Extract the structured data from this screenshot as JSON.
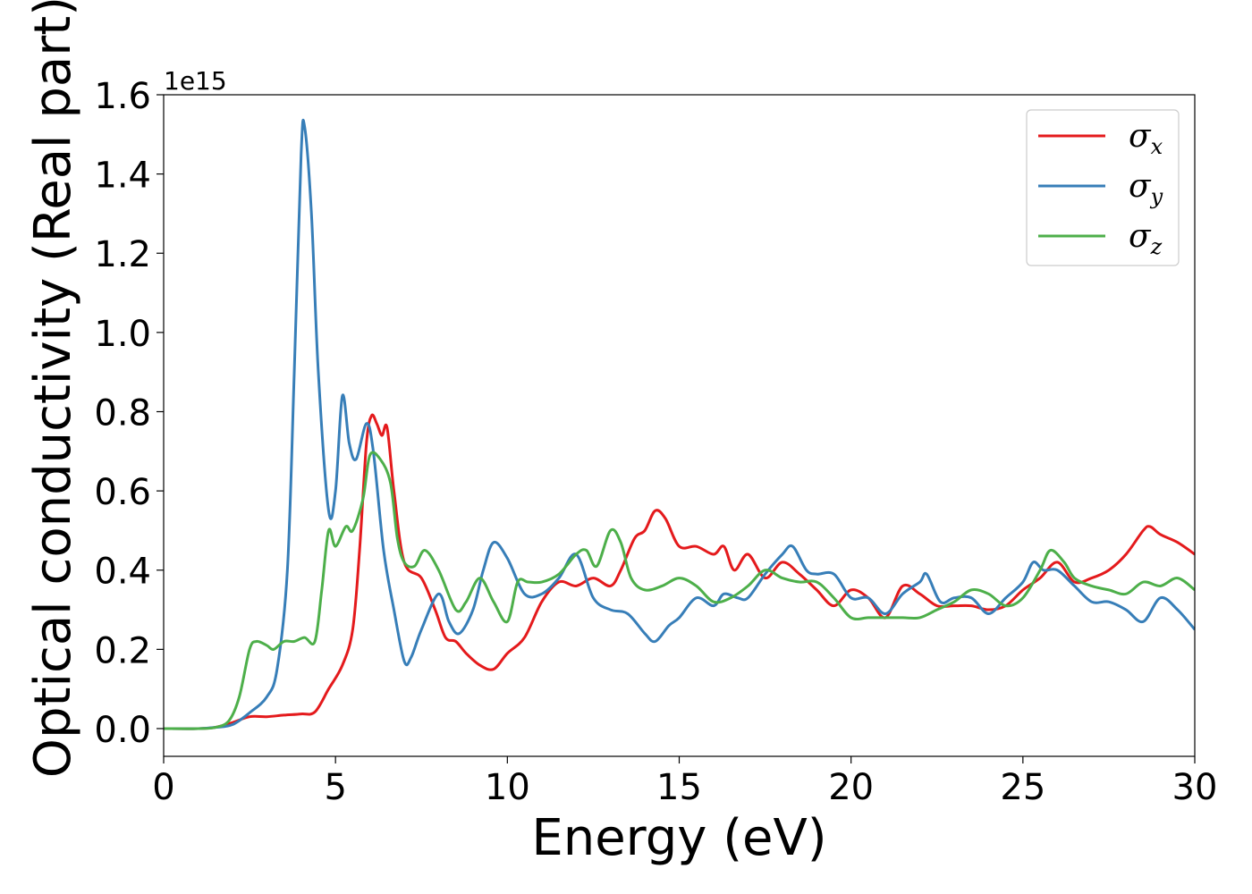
{
  "chart_data": {
    "type": "line",
    "xlabel": "Energy (eV)",
    "ylabel": "Optical conductivity (Real part)",
    "y_offset_label": "1e15",
    "xlim": [
      0,
      30
    ],
    "ylim": [
      -0.07,
      1.6
    ],
    "x_ticks": [
      "0",
      "5",
      "10",
      "15",
      "20",
      "25",
      "30"
    ],
    "x_tick_values": [
      0,
      5,
      10,
      15,
      20,
      25,
      30
    ],
    "y_ticks": [
      "0.0",
      "0.2",
      "0.4",
      "0.6",
      "0.8",
      "1.0",
      "1.2",
      "1.4",
      "1.6"
    ],
    "y_tick_values": [
      0,
      0.2,
      0.4,
      0.6,
      0.8,
      1.0,
      1.2,
      1.4,
      1.6
    ],
    "grid": false,
    "legend_position": "top-right",
    "series": [
      {
        "name": "σx",
        "symbol": "σ",
        "subscript": "x",
        "color": "#e41a1c",
        "points": [
          [
            0,
            0
          ],
          [
            1,
            0
          ],
          [
            1.5,
            0.003
          ],
          [
            2,
            0.015
          ],
          [
            2.5,
            0.03
          ],
          [
            3,
            0.03
          ],
          [
            3.5,
            0.034
          ],
          [
            4,
            0.037
          ],
          [
            4.4,
            0.042
          ],
          [
            4.8,
            0.1
          ],
          [
            5.2,
            0.16
          ],
          [
            5.5,
            0.25
          ],
          [
            5.7,
            0.45
          ],
          [
            5.9,
            0.72
          ],
          [
            6.05,
            0.79
          ],
          [
            6.2,
            0.77
          ],
          [
            6.35,
            0.74
          ],
          [
            6.5,
            0.76
          ],
          [
            6.7,
            0.6
          ],
          [
            7,
            0.42
          ],
          [
            7.5,
            0.38
          ],
          [
            7.9,
            0.3
          ],
          [
            8.2,
            0.23
          ],
          [
            8.5,
            0.22
          ],
          [
            8.8,
            0.19
          ],
          [
            9.2,
            0.16
          ],
          [
            9.6,
            0.15
          ],
          [
            10,
            0.19
          ],
          [
            10.5,
            0.23
          ],
          [
            11,
            0.32
          ],
          [
            11.5,
            0.37
          ],
          [
            12,
            0.36
          ],
          [
            12.5,
            0.38
          ],
          [
            13,
            0.36
          ],
          [
            13.3,
            0.4
          ],
          [
            13.7,
            0.48
          ],
          [
            14,
            0.5
          ],
          [
            14.3,
            0.55
          ],
          [
            14.6,
            0.53
          ],
          [
            15,
            0.46
          ],
          [
            15.5,
            0.46
          ],
          [
            16,
            0.44
          ],
          [
            16.3,
            0.46
          ],
          [
            16.6,
            0.4
          ],
          [
            17,
            0.44
          ],
          [
            17.5,
            0.38
          ],
          [
            18,
            0.42
          ],
          [
            18.5,
            0.39
          ],
          [
            19,
            0.35
          ],
          [
            19.5,
            0.31
          ],
          [
            20,
            0.35
          ],
          [
            20.5,
            0.33
          ],
          [
            21,
            0.28
          ],
          [
            21.5,
            0.36
          ],
          [
            22,
            0.34
          ],
          [
            22.5,
            0.31
          ],
          [
            23,
            0.31
          ],
          [
            23.5,
            0.31
          ],
          [
            24,
            0.3
          ],
          [
            24.5,
            0.31
          ],
          [
            25,
            0.35
          ],
          [
            25.5,
            0.38
          ],
          [
            26,
            0.42
          ],
          [
            26.5,
            0.37
          ],
          [
            27,
            0.38
          ],
          [
            27.5,
            0.4
          ],
          [
            28,
            0.44
          ],
          [
            28.5,
            0.5
          ],
          [
            28.7,
            0.51
          ],
          [
            29,
            0.49
          ],
          [
            29.5,
            0.47
          ],
          [
            30,
            0.44
          ]
        ]
      },
      {
        "name": "σy",
        "symbol": "σ",
        "subscript": "y",
        "color": "#377eb8",
        "points": [
          [
            0,
            0
          ],
          [
            1,
            0
          ],
          [
            1.5,
            0.003
          ],
          [
            2,
            0.01
          ],
          [
            2.5,
            0.04
          ],
          [
            3,
            0.08
          ],
          [
            3.3,
            0.15
          ],
          [
            3.6,
            0.4
          ],
          [
            3.8,
            0.9
          ],
          [
            4,
            1.45
          ],
          [
            4.1,
            1.52
          ],
          [
            4.3,
            1.3
          ],
          [
            4.5,
            0.9
          ],
          [
            4.8,
            0.55
          ],
          [
            5,
            0.6
          ],
          [
            5.2,
            0.84
          ],
          [
            5.4,
            0.72
          ],
          [
            5.6,
            0.68
          ],
          [
            5.9,
            0.77
          ],
          [
            6.1,
            0.7
          ],
          [
            6.4,
            0.45
          ],
          [
            6.7,
            0.3
          ],
          [
            7,
            0.17
          ],
          [
            7.2,
            0.18
          ],
          [
            7.5,
            0.25
          ],
          [
            8,
            0.34
          ],
          [
            8.3,
            0.27
          ],
          [
            8.6,
            0.24
          ],
          [
            9,
            0.3
          ],
          [
            9.3,
            0.4
          ],
          [
            9.6,
            0.47
          ],
          [
            10,
            0.43
          ],
          [
            10.5,
            0.34
          ],
          [
            11,
            0.34
          ],
          [
            11.5,
            0.38
          ],
          [
            12,
            0.44
          ],
          [
            12.5,
            0.33
          ],
          [
            13,
            0.3
          ],
          [
            13.5,
            0.29
          ],
          [
            14,
            0.24
          ],
          [
            14.3,
            0.22
          ],
          [
            14.7,
            0.26
          ],
          [
            15,
            0.28
          ],
          [
            15.5,
            0.33
          ],
          [
            16,
            0.31
          ],
          [
            16.3,
            0.34
          ],
          [
            16.7,
            0.33
          ],
          [
            17,
            0.33
          ],
          [
            17.5,
            0.39
          ],
          [
            18,
            0.44
          ],
          [
            18.3,
            0.46
          ],
          [
            18.7,
            0.4
          ],
          [
            19,
            0.39
          ],
          [
            19.5,
            0.39
          ],
          [
            20,
            0.33
          ],
          [
            20.5,
            0.33
          ],
          [
            21,
            0.29
          ],
          [
            21.5,
            0.34
          ],
          [
            22,
            0.37
          ],
          [
            22.2,
            0.39
          ],
          [
            22.6,
            0.32
          ],
          [
            23,
            0.33
          ],
          [
            23.5,
            0.33
          ],
          [
            24,
            0.29
          ],
          [
            24.5,
            0.33
          ],
          [
            25,
            0.37
          ],
          [
            25.3,
            0.42
          ],
          [
            25.6,
            0.4
          ],
          [
            26,
            0.4
          ],
          [
            26.5,
            0.36
          ],
          [
            27,
            0.32
          ],
          [
            27.5,
            0.32
          ],
          [
            28,
            0.3
          ],
          [
            28.5,
            0.27
          ],
          [
            29,
            0.33
          ],
          [
            29.5,
            0.3
          ],
          [
            30,
            0.25
          ]
        ]
      },
      {
        "name": "σz",
        "symbol": "σ",
        "subscript": "z",
        "color": "#4daf4a",
        "points": [
          [
            0,
            0
          ],
          [
            1,
            0
          ],
          [
            1.5,
            0.003
          ],
          [
            1.9,
            0.02
          ],
          [
            2.2,
            0.08
          ],
          [
            2.5,
            0.2
          ],
          [
            2.7,
            0.22
          ],
          [
            3,
            0.21
          ],
          [
            3.2,
            0.2
          ],
          [
            3.5,
            0.22
          ],
          [
            3.8,
            0.22
          ],
          [
            4.1,
            0.23
          ],
          [
            4.4,
            0.22
          ],
          [
            4.6,
            0.35
          ],
          [
            4.8,
            0.5
          ],
          [
            5,
            0.46
          ],
          [
            5.3,
            0.51
          ],
          [
            5.5,
            0.5
          ],
          [
            5.8,
            0.58
          ],
          [
            6,
            0.69
          ],
          [
            6.3,
            0.68
          ],
          [
            6.6,
            0.62
          ],
          [
            6.8,
            0.48
          ],
          [
            7,
            0.42
          ],
          [
            7.3,
            0.41
          ],
          [
            7.6,
            0.45
          ],
          [
            8,
            0.4
          ],
          [
            8.5,
            0.3
          ],
          [
            8.8,
            0.32
          ],
          [
            9.2,
            0.38
          ],
          [
            9.6,
            0.32
          ],
          [
            10,
            0.27
          ],
          [
            10.3,
            0.37
          ],
          [
            10.6,
            0.37
          ],
          [
            11,
            0.37
          ],
          [
            11.5,
            0.39
          ],
          [
            12,
            0.44
          ],
          [
            12.3,
            0.45
          ],
          [
            12.6,
            0.41
          ],
          [
            13,
            0.5
          ],
          [
            13.3,
            0.47
          ],
          [
            13.6,
            0.38
          ],
          [
            14,
            0.35
          ],
          [
            14.5,
            0.36
          ],
          [
            15,
            0.38
          ],
          [
            15.5,
            0.36
          ],
          [
            16,
            0.32
          ],
          [
            16.5,
            0.33
          ],
          [
            17,
            0.36
          ],
          [
            17.5,
            0.4
          ],
          [
            18,
            0.38
          ],
          [
            18.5,
            0.37
          ],
          [
            19,
            0.37
          ],
          [
            19.5,
            0.33
          ],
          [
            20,
            0.28
          ],
          [
            20.5,
            0.28
          ],
          [
            21,
            0.28
          ],
          [
            21.5,
            0.28
          ],
          [
            22,
            0.28
          ],
          [
            22.5,
            0.3
          ],
          [
            23,
            0.32
          ],
          [
            23.5,
            0.35
          ],
          [
            24,
            0.34
          ],
          [
            24.5,
            0.31
          ],
          [
            25,
            0.33
          ],
          [
            25.5,
            0.4
          ],
          [
            25.8,
            0.45
          ],
          [
            26.2,
            0.42
          ],
          [
            26.5,
            0.38
          ],
          [
            27,
            0.36
          ],
          [
            27.5,
            0.35
          ],
          [
            28,
            0.34
          ],
          [
            28.5,
            0.37
          ],
          [
            29,
            0.36
          ],
          [
            29.5,
            0.38
          ],
          [
            30,
            0.35
          ]
        ]
      }
    ]
  }
}
